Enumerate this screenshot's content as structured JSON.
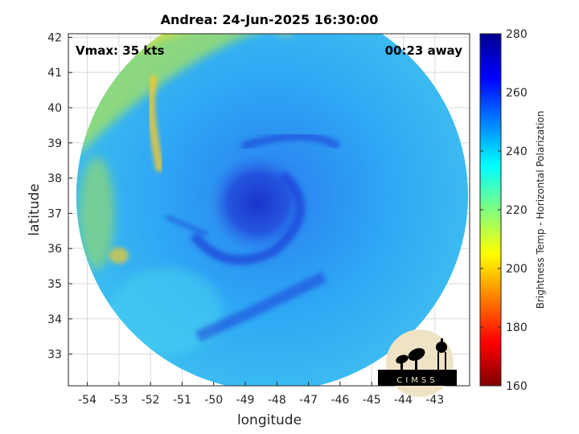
{
  "chart_data": {
    "type": "heatmap",
    "title": "Andrea: 24-Jun-2025 16:30:00",
    "xlabel": "longitude",
    "ylabel": "latitude",
    "xlim": [
      -54.6,
      -41.9
    ],
    "ylim": [
      32.1,
      42.1
    ],
    "xticks": [
      -54,
      -53,
      -52,
      -51,
      -50,
      -49,
      -48,
      -47,
      -46,
      -45,
      -44,
      -43
    ],
    "yticks": [
      33,
      34,
      35,
      36,
      37,
      38,
      39,
      40,
      41,
      42
    ],
    "xtick_labels": [
      "-54",
      "-53",
      "-52",
      "-51",
      "-50",
      "-49",
      "-48",
      "-47",
      "-46",
      "-45",
      "-44",
      "-43"
    ],
    "ytick_labels": [
      "33",
      "34",
      "35",
      "36",
      "37",
      "38",
      "39",
      "40",
      "41",
      "42"
    ],
    "grid": true,
    "colorbar": {
      "label": "Brightness Temp - Horizontal Polarization",
      "range": [
        160,
        280
      ],
      "ticks": [
        160,
        180,
        200,
        220,
        240,
        260,
        280
      ],
      "tick_labels": [
        "160",
        "180",
        "200",
        "220",
        "240",
        "260",
        "280"
      ],
      "colormap": "jet-reversed"
    },
    "annotations": {
      "vmax": "Vmax: 35 kts",
      "time_offset": "00:23 away"
    },
    "storm_center": {
      "lon": -48.6,
      "lat": 37.3
    },
    "swath": {
      "center_lon": -48.15,
      "center_lat": 37.5,
      "radius_lon": 6.2,
      "radius_lat": 5.55
    }
  },
  "logo": {
    "text": "CIMSS"
  },
  "colors": {
    "background": "#ffffff",
    "grid": "#d9d9d9",
    "axis": "#000000",
    "warm_band": "#e8e030",
    "cold_core": "#1a2bc8",
    "field_base": "#2a9cf2",
    "logo_bg": "#efe3c6",
    "logo_dark": "#000000"
  }
}
